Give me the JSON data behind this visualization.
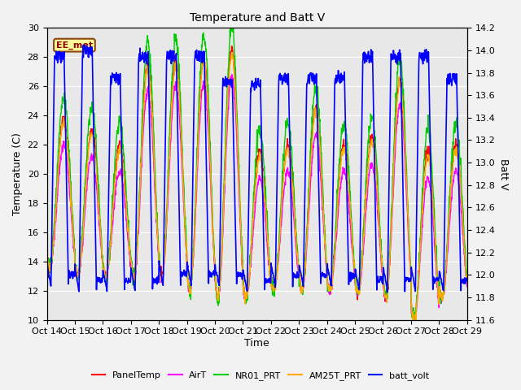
{
  "title": "Temperature and Batt V",
  "xlabel": "Time",
  "ylabel_left": "Temperature (C)",
  "ylabel_right": "Batt V",
  "annotation": "EE_met",
  "x_tick_labels": [
    "Oct 14",
    "Oct 15",
    "Oct 16",
    "Oct 17",
    "Oct 18",
    "Oct 19",
    "Oct 20",
    "Oct 21",
    "Oct 22",
    "Oct 23",
    "Oct 24",
    "Oct 25",
    "Oct 26",
    "Oct 27",
    "Oct 28",
    "Oct 29"
  ],
  "ylim_left": [
    10,
    30
  ],
  "ylim_right": [
    11.6,
    14.2
  ],
  "yticks_left": [
    10,
    12,
    14,
    16,
    18,
    20,
    22,
    24,
    26,
    28,
    30
  ],
  "yticks_right": [
    11.6,
    11.8,
    12.0,
    12.2,
    12.4,
    12.6,
    12.8,
    13.0,
    13.2,
    13.4,
    13.6,
    13.8,
    14.0,
    14.2
  ],
  "legend_labels": [
    "PanelTemp",
    "AirT",
    "NR01_PRT",
    "AM25T_PRT",
    "batt_volt"
  ],
  "legend_colors": [
    "#ff0000",
    "#ff00ff",
    "#00cc00",
    "#ffaa00",
    "#0000ff"
  ],
  "background_color": "#e8e8e8",
  "fig_bg_color": "#f2f2f2",
  "n_days": 15,
  "pts_per_day": 96,
  "temp_mins": [
    13.5,
    13.0,
    13.0,
    12.8,
    12.8,
    12.0,
    11.5,
    11.5,
    12.0,
    12.0,
    12.0,
    11.8,
    11.5,
    10.0,
    11.5
  ],
  "temp_maxs": [
    23.8,
    23.0,
    22.0,
    27.5,
    27.8,
    28.0,
    28.5,
    21.5,
    22.0,
    24.5,
    22.0,
    22.5,
    26.5,
    21.5,
    22.0
  ],
  "nr01_extra_max": 1.5,
  "batt_mins_v": [
    11.9,
    11.85,
    11.85,
    11.85,
    11.9,
    11.9,
    11.9,
    11.85,
    11.9,
    11.9,
    11.9,
    11.85,
    11.85,
    11.85,
    11.85
  ],
  "batt_maxs_v": [
    14.0,
    14.05,
    13.8,
    14.0,
    14.0,
    14.0,
    13.75,
    13.75,
    13.8,
    13.8,
    13.8,
    14.0,
    14.0,
    14.0,
    13.8
  ]
}
